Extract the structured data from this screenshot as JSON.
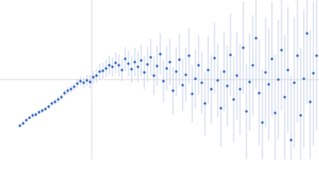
{
  "chart_data": {
    "type": "scatter",
    "xlim": [
      0,
      400
    ],
    "ylim": [
      0,
      200
    ],
    "reference_lines": {
      "x": 115,
      "y": 100,
      "color": "#d9d9d9"
    },
    "x": [
      25,
      29,
      33,
      37,
      41,
      45,
      49,
      53,
      57,
      61,
      65,
      69,
      73,
      77,
      81,
      85,
      89,
      93,
      97,
      101,
      105,
      109,
      113,
      117,
      121,
      125,
      129,
      133,
      137,
      141,
      145,
      149,
      153,
      157,
      161,
      165,
      169,
      173,
      177,
      181,
      185,
      189,
      193,
      197,
      201,
      205,
      209,
      213,
      217,
      221,
      225,
      229,
      233,
      237,
      241,
      245,
      249,
      253,
      257,
      261,
      265,
      269,
      273,
      277,
      281,
      285,
      289,
      293,
      297,
      301,
      305,
      309,
      313,
      317,
      321,
      325,
      329,
      333,
      337,
      341,
      345,
      349,
      353,
      357,
      361,
      365,
      369,
      373,
      377,
      381,
      385,
      389,
      393,
      397
    ],
    "series": [
      {
        "color": "#3a6bc4",
        "error_color": "#c5d2ec",
        "values": [
          42,
          45,
          49,
          52,
          55,
          56,
          59,
          61,
          63,
          66,
          70,
          72,
          75,
          78,
          83,
          86,
          88,
          91,
          95,
          98,
          96,
          99,
          97,
          103,
          105,
          110,
          111,
          114,
          118,
          116,
          121,
          118,
          112,
          126,
          120,
          113,
          122,
          116,
          124,
          109,
          119,
          128,
          105,
          117,
          132,
          98,
          114,
          122,
          86,
          110,
          125,
          93,
          106,
          130,
          82,
          101,
          118,
          96,
          70,
          112,
          88,
          127,
          99,
          64,
          110,
          92,
          131,
          75,
          105,
          88,
          140,
          60,
          97,
          118,
          152,
          83,
          46,
          109,
          94,
          126,
          58,
          100,
          137,
          78,
          112,
          24,
          96,
          130,
          55,
          101,
          158,
          72,
          108,
          130
        ],
        "errors": [
          2,
          2,
          2,
          2,
          3,
          3,
          3,
          3,
          3,
          3,
          3,
          4,
          4,
          4,
          4,
          5,
          5,
          5,
          6,
          6,
          7,
          7,
          8,
          8,
          9,
          10,
          10,
          11,
          12,
          12,
          13,
          14,
          14,
          15,
          16,
          17,
          18,
          19,
          20,
          21,
          22,
          23,
          24,
          25,
          26,
          27,
          28,
          29,
          30,
          31,
          32,
          33,
          34,
          35,
          36,
          37,
          38,
          39,
          40,
          42,
          43,
          45,
          46,
          48,
          49,
          51,
          52,
          54,
          55,
          57,
          58,
          60,
          61,
          63,
          64,
          66,
          67,
          69,
          70,
          72,
          73,
          75,
          76,
          78,
          79,
          81,
          82,
          84,
          85,
          87,
          88,
          90,
          91,
          93
        ]
      }
    ]
  }
}
